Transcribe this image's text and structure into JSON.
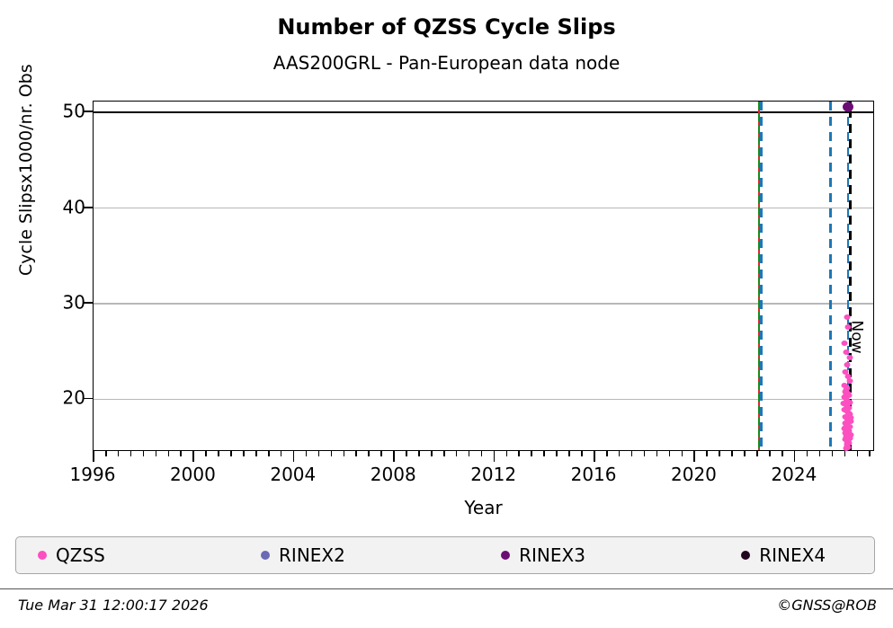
{
  "title": "Number of QZSS Cycle Slips",
  "subtitle": "AAS200GRL - Pan-European data node",
  "footer": {
    "timestamp": "Tue Mar 31 12:00:17 2026",
    "credit": "©GNSS@ROB"
  },
  "legend": [
    {
      "label": "QZSS",
      "color": "#fc4fc0"
    },
    {
      "label": "RINEX2",
      "color": "#6a6ab5"
    },
    {
      "label": "RINEX3",
      "color": "#6b0e74"
    },
    {
      "label": "RINEX4",
      "color": "#22051f"
    }
  ],
  "chart_data": {
    "type": "scatter",
    "title": "Number of QZSS Cycle Slips",
    "subtitle": "AAS200GRL - Pan-European data node",
    "xlabel": "Year",
    "ylabel": "Cycle Slipsx1000/nr. Obs",
    "xlim": [
      1996,
      2027.2
    ],
    "ylim": [
      14.5,
      51.15
    ],
    "x_major_ticks": [
      1996,
      2000,
      2004,
      2008,
      2012,
      2016,
      2020,
      2024
    ],
    "x_minor_step": 0.5,
    "y_ticks": [
      20,
      30,
      40,
      50
    ],
    "grid": "horizontal-major",
    "hline": {
      "y": 50,
      "color": "#000000"
    },
    "vlines": [
      {
        "x": 2022.58,
        "colors": [
          "#1a8a1a",
          "#d42a2a"
        ],
        "style": "dashed",
        "width": 2.2,
        "name": "event-red-green"
      },
      {
        "x": 2022.66,
        "colors": [
          "#1f77b4"
        ],
        "style": "dashed",
        "width": 2.2,
        "name": "event-blue-1"
      },
      {
        "x": 2025.43,
        "colors": [
          "#1f77b4"
        ],
        "style": "dashed",
        "width": 2.5,
        "name": "event-blue-2"
      },
      {
        "x": 2026.13,
        "colors": [
          "#1f77b4"
        ],
        "style": "dashed",
        "width": 2.5,
        "name": "event-blue-3"
      },
      {
        "x": 2026.21,
        "colors": [
          "#000000"
        ],
        "style": "dashed",
        "width": 2.5,
        "name": "now-line"
      }
    ],
    "now_annotation": {
      "label": "Now",
      "x": 2026.45,
      "y": 26.5,
      "rotation": 90
    },
    "series": [
      {
        "name": "QZSS",
        "color": "#fc4fc0",
        "marker_px": 7,
        "points": [
          [
            2026.08,
            28.6
          ],
          [
            2026.12,
            27.6
          ],
          [
            2025.98,
            25.9
          ],
          [
            2026.05,
            24.9
          ],
          [
            2026.18,
            24.4
          ],
          [
            2026.1,
            23.6
          ],
          [
            2026.02,
            22.9
          ],
          [
            2026.14,
            22.4
          ],
          [
            2026.2,
            21.9
          ],
          [
            2025.99,
            21.5
          ],
          [
            2026.07,
            21.2
          ],
          [
            2026.06,
            21.0
          ],
          [
            2026.01,
            20.8
          ],
          [
            2026.11,
            20.6
          ],
          [
            2026.04,
            20.5
          ],
          [
            2026.16,
            20.4
          ],
          [
            2025.97,
            20.2
          ],
          [
            2026.06,
            20.0
          ],
          [
            2026.13,
            19.8
          ],
          [
            2026.21,
            19.7
          ],
          [
            2025.96,
            19.6
          ],
          [
            2026.03,
            19.5
          ],
          [
            2026.09,
            19.3
          ],
          [
            2026.17,
            19.1
          ],
          [
            2026.08,
            19.0
          ],
          [
            2025.98,
            18.9
          ],
          [
            2026.05,
            18.8
          ],
          [
            2026.12,
            18.6
          ],
          [
            2026.15,
            18.5
          ],
          [
            2026.19,
            18.4
          ],
          [
            2026.0,
            18.2
          ],
          [
            2026.22,
            18.1
          ],
          [
            2026.08,
            18.0
          ],
          [
            2026.15,
            17.9
          ],
          [
            2026.13,
            17.8
          ],
          [
            2026.22,
            17.7
          ],
          [
            2026.02,
            17.5
          ],
          [
            2026.1,
            17.3
          ],
          [
            2026.18,
            17.1
          ],
          [
            2026.0,
            17.0
          ],
          [
            2025.99,
            16.9
          ],
          [
            2026.06,
            16.8
          ],
          [
            2026.17,
            16.7
          ],
          [
            2026.13,
            16.6
          ],
          [
            2026.02,
            16.5
          ],
          [
            2026.04,
            16.4
          ],
          [
            2026.23,
            16.3
          ],
          [
            2026.11,
            16.2
          ],
          [
            2026.04,
            16.1
          ],
          [
            2026.2,
            16.0
          ],
          [
            2026.19,
            15.9
          ],
          [
            2026.01,
            15.8
          ],
          [
            2026.09,
            15.6
          ],
          [
            2026.12,
            15.5
          ],
          [
            2026.16,
            15.4
          ],
          [
            2026.1,
            15.3
          ],
          [
            2026.07,
            15.2
          ],
          [
            2026.14,
            15.0
          ],
          [
            2026.05,
            14.9
          ]
        ]
      },
      {
        "name": "RINEX2",
        "color": "#6a6ab5",
        "marker_px": 7,
        "points": []
      },
      {
        "name": "RINEX3",
        "color": "#6b0e74",
        "marker_px": 12,
        "points": [
          [
            2026.13,
            50.55
          ]
        ]
      },
      {
        "name": "RINEX4",
        "color": "#22051f",
        "marker_px": 7,
        "points": []
      }
    ]
  }
}
